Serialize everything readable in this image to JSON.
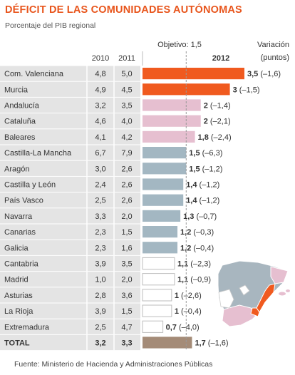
{
  "title": "DÉFICIT DE LAS COMUNIDADES AUTÓNOMAS",
  "subtitle": "Porcentaje del PIB regional",
  "source": "Fuente: Ministerio de Hacienda y Administraciones Públicas",
  "headers": {
    "col2010": "2010",
    "col2011": "2011",
    "objective": "Objetivo: 1,5",
    "col2012": "2012",
    "variation_line1": "Variación",
    "variation_line2": "(puntos)"
  },
  "colors": {
    "title": "#e8551c",
    "high": "#f05a1f",
    "mid": "#e6bfd0",
    "above_objective": "#a3b7c2",
    "below_objective": "#ffffff",
    "total": "#a48b77",
    "valencia_map": "#f05a1f",
    "row_band": "#e4e4e4"
  },
  "chart_data": {
    "type": "table",
    "objective": 1.5,
    "xlim": [
      0,
      3.5
    ],
    "rows": [
      {
        "region": "Com. Valenciana",
        "v2010": "4,8",
        "v2011": "5,0",
        "value": 3.5,
        "label": "3,5",
        "change": "(–1,6)",
        "tier": "high"
      },
      {
        "region": "Murcia",
        "v2010": "4,9",
        "v2011": "4,5",
        "value": 3,
        "label": "3",
        "change": "(–1,5)",
        "tier": "high"
      },
      {
        "region": "Andalucía",
        "v2010": "3,2",
        "v2011": "3,5",
        "value": 2,
        "label": "2",
        "change": "(–1,4)",
        "tier": "mid"
      },
      {
        "region": "Cataluña",
        "v2010": "4,6",
        "v2011": "4,0",
        "value": 2,
        "label": "2",
        "change": "(–2,1)",
        "tier": "mid"
      },
      {
        "region": "Baleares",
        "v2010": "4,1",
        "v2011": "4,2",
        "value": 1.8,
        "label": "1,8",
        "change": "(–2,4)",
        "tier": "mid"
      },
      {
        "region": "Castilla-La Mancha",
        "v2010": "6,7",
        "v2011": "7,9",
        "value": 1.5,
        "label": "1,5",
        "change": "(–6,3)",
        "tier": "above_objective"
      },
      {
        "region": "Aragón",
        "v2010": "3,0",
        "v2011": "2,6",
        "value": 1.5,
        "label": "1,5",
        "change": "(–1,2)",
        "tier": "above_objective"
      },
      {
        "region": "Castilla y León",
        "v2010": "2,4",
        "v2011": "2,6",
        "value": 1.4,
        "label": "1,4",
        "change": "(–1,2)",
        "tier": "above_objective"
      },
      {
        "region": "País Vasco",
        "v2010": "2,5",
        "v2011": "2,6",
        "value": 1.4,
        "label": "1,4",
        "change": "(–1,2)",
        "tier": "above_objective"
      },
      {
        "region": " Navarra",
        "v2010": "3,3",
        "v2011": "2,0",
        "value": 1.3,
        "label": "1,3",
        "change": "(–0,7)",
        "tier": "above_objective"
      },
      {
        "region": "Canarias",
        "v2010": "2,3",
        "v2011": "1,5",
        "value": 1.2,
        "label": "1,2",
        "change": "(–0,3)",
        "tier": "above_objective"
      },
      {
        "region": "Galicia",
        "v2010": "2,3",
        "v2011": "1,6",
        "value": 1.2,
        "label": "1,2",
        "change": "(–0,4)",
        "tier": "above_objective"
      },
      {
        "region": "Cantabria",
        "v2010": "3,9",
        "v2011": "3,5",
        "value": 1.1,
        "label": "1,1",
        "change": "(–2,3)",
        "tier": "below_objective"
      },
      {
        "region": "Madrid",
        "v2010": "1,0",
        "v2011": "2,0",
        "value": 1.1,
        "label": "1,1",
        "change": "(–0,9)",
        "tier": "below_objective"
      },
      {
        "region": "Asturias",
        "v2010": "2,8",
        "v2011": "3,6",
        "value": 1,
        "label": "1",
        "change": "(–2,6)",
        "tier": "below_objective"
      },
      {
        "region": "La Rioja",
        "v2010": "3,9",
        "v2011": "1,5",
        "value": 1,
        "label": "1",
        "change": "(–0,4)",
        "tier": "below_objective"
      },
      {
        "region": "Extremadura",
        "v2010": "2,5",
        "v2011": "4,7",
        "value": 0.7,
        "label": "0,7",
        "change": "(–4,0)",
        "tier": "below_objective"
      }
    ],
    "total": {
      "region": "TOTAL",
      "v2010": "3,2",
      "v2011": "3,3",
      "value": 1.7,
      "label": "1,7",
      "change": "(–1,6)",
      "tier": "total"
    }
  }
}
